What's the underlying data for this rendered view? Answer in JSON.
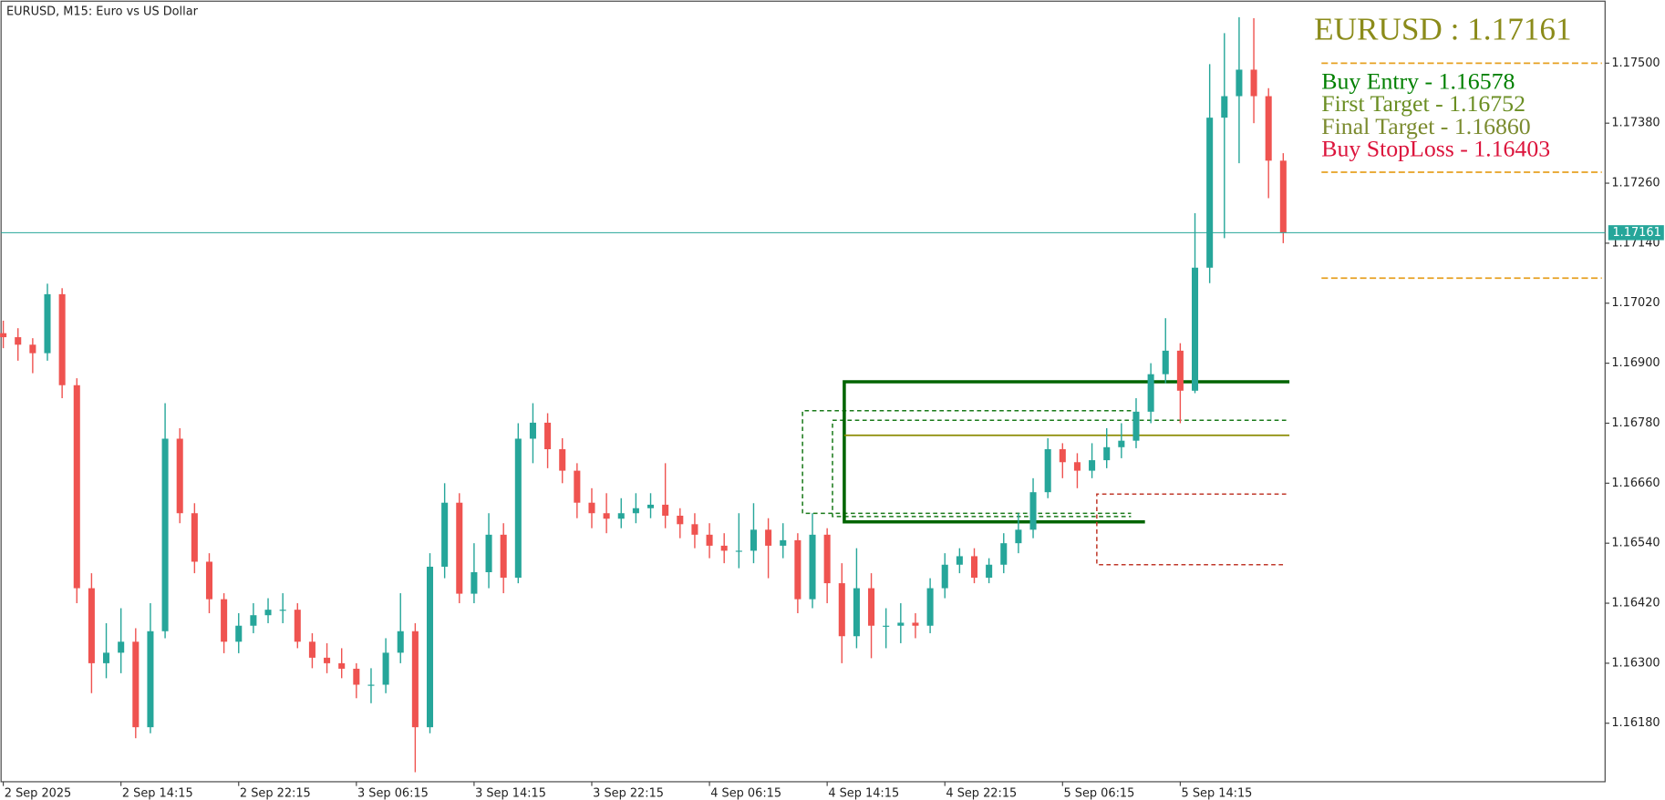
{
  "chart_data": {
    "type": "candlestick",
    "title": "EURUSD, M15:  Euro vs US Dollar",
    "x": [
      0,
      4,
      8,
      12,
      16,
      20,
      24,
      28,
      32,
      36,
      40,
      44,
      48,
      52,
      56,
      60,
      64,
      68,
      72,
      76,
      80,
      84,
      88,
      92,
      96,
      100,
      104,
      108,
      112,
      116,
      120,
      124,
      128,
      132,
      136,
      140,
      144,
      148,
      152,
      156,
      160,
      164,
      168,
      172,
      176,
      180,
      184,
      188,
      192,
      196,
      200,
      204,
      208,
      212,
      216,
      220,
      224,
      228,
      232,
      236,
      240,
      244,
      248,
      252,
      256,
      260,
      264,
      268,
      272,
      276,
      280,
      284,
      288,
      292,
      296,
      300,
      304,
      308,
      312,
      316,
      320,
      324,
      328,
      332,
      336,
      340,
      344,
      348
    ],
    "open": [
      1.1696,
      1.16952,
      1.16937,
      1.1692,
      1.17038,
      1.16856,
      1.1645,
      1.163,
      1.16321,
      1.16343,
      1.16172,
      1.16364,
      1.16749,
      1.166,
      1.16503,
      1.16428,
      1.16343,
      1.16375,
      1.16396,
      1.16407,
      1.16407,
      1.16343,
      1.16311,
      1.163,
      1.16289,
      1.16257,
      1.16257,
      1.16321,
      1.16364,
      1.16172,
      1.16493,
      1.16621,
      1.16439,
      1.16482,
      1.16557,
      1.16471,
      1.16749,
      1.16781,
      1.16728,
      1.16685,
      1.16621,
      1.166,
      1.16589,
      1.166,
      1.1661,
      1.16617,
      1.16595,
      1.16578,
      1.16557,
      1.16535,
      1.16525,
      1.16525,
      1.16567,
      1.16535,
      1.16546,
      1.16428,
      1.16557,
      1.1646,
      1.16354,
      1.1645,
      1.16375,
      1.16375,
      1.16381,
      1.16375,
      1.1645,
      1.16497,
      1.16514,
      1.16471,
      1.16497,
      1.1654,
      1.16567,
      1.16642,
      1.16728,
      1.16702,
      1.16685,
      1.16706,
      1.16732,
      1.16745,
      1.16803,
      1.16878,
      1.16925,
      1.16845,
      1.17091,
      1.17391,
      1.17434,
      1.17487,
      1.17434,
      1.17305
    ],
    "high": [
      1.16985,
      1.1697,
      1.1695,
      1.17059,
      1.1705,
      1.1687,
      1.1648,
      1.1638,
      1.1641,
      1.1637,
      1.1642,
      1.1682,
      1.1677,
      1.1662,
      1.1652,
      1.1644,
      1.164,
      1.1642,
      1.1643,
      1.1644,
      1.1642,
      1.1636,
      1.1634,
      1.1633,
      1.163,
      1.1629,
      1.1635,
      1.1644,
      1.1638,
      1.1652,
      1.1666,
      1.1664,
      1.1654,
      1.166,
      1.1658,
      1.1678,
      1.1682,
      1.168,
      1.1675,
      1.167,
      1.1665,
      1.1664,
      1.1663,
      1.1664,
      1.1664,
      1.167,
      1.1661,
      1.166,
      1.1658,
      1.1656,
      1.166,
      1.1662,
      1.1659,
      1.1658,
      1.1656,
      1.166,
      1.1657,
      1.165,
      1.1653,
      1.1648,
      1.1641,
      1.1642,
      1.164,
      1.1647,
      1.1652,
      1.1653,
      1.1653,
      1.1651,
      1.1656,
      1.166,
      1.1667,
      1.1675,
      1.1674,
      1.1672,
      1.1674,
      1.1677,
      1.1678,
      1.1683,
      1.169,
      1.1699,
      1.1694,
      1.172,
      1.17498,
      1.1756,
      1.17592,
      1.1759,
      1.1745,
      1.1732
    ],
    "low": [
      1.1693,
      1.16905,
      1.1688,
      1.16905,
      1.1683,
      1.1642,
      1.1624,
      1.1627,
      1.1628,
      1.1615,
      1.1616,
      1.1635,
      1.1658,
      1.1648,
      1.164,
      1.1632,
      1.1632,
      1.1636,
      1.1638,
      1.1638,
      1.1633,
      1.1629,
      1.1628,
      1.1627,
      1.1623,
      1.1622,
      1.1624,
      1.163,
      1.16082,
      1.1616,
      1.1647,
      1.1642,
      1.1642,
      1.1645,
      1.1644,
      1.1646,
      1.167,
      1.1669,
      1.1666,
      1.1659,
      1.1657,
      1.1656,
      1.1657,
      1.1658,
      1.1659,
      1.1657,
      1.1655,
      1.1653,
      1.1651,
      1.165,
      1.1649,
      1.165,
      1.1647,
      1.1651,
      1.164,
      1.1641,
      1.1642,
      1.163,
      1.1633,
      1.1631,
      1.1633,
      1.1634,
      1.1635,
      1.1636,
      1.1643,
      1.1648,
      1.1646,
      1.1646,
      1.1648,
      1.1652,
      1.1655,
      1.1663,
      1.1667,
      1.1665,
      1.1667,
      1.1669,
      1.1671,
      1.1673,
      1.1678,
      1.1686,
      1.1678,
      1.1684,
      1.1706,
      1.1715,
      1.173,
      1.1738,
      1.1723,
      1.1714
    ],
    "close": [
      1.16952,
      1.16937,
      1.1692,
      1.17038,
      1.16856,
      1.1645,
      1.163,
      1.16321,
      1.16343,
      1.16172,
      1.16364,
      1.16749,
      1.166,
      1.16503,
      1.16428,
      1.16343,
      1.16375,
      1.16396,
      1.16407,
      1.16407,
      1.16343,
      1.16311,
      1.163,
      1.16289,
      1.16257,
      1.16257,
      1.16321,
      1.16364,
      1.16172,
      1.16493,
      1.16621,
      1.16439,
      1.16482,
      1.16557,
      1.16471,
      1.16749,
      1.16781,
      1.16728,
      1.16685,
      1.16621,
      1.166,
      1.16589,
      1.166,
      1.1661,
      1.16617,
      1.16595,
      1.16578,
      1.16557,
      1.16535,
      1.16525,
      1.16525,
      1.16567,
      1.16535,
      1.16546,
      1.16428,
      1.16557,
      1.1646,
      1.16354,
      1.1645,
      1.16375,
      1.16375,
      1.16381,
      1.16375,
      1.1645,
      1.16497,
      1.16514,
      1.16471,
      1.16497,
      1.1654,
      1.16567,
      1.16642,
      1.16728,
      1.16702,
      1.16685,
      1.16706,
      1.16732,
      1.16745,
      1.16803,
      1.16878,
      1.16925,
      1.16845,
      1.17091,
      1.17391,
      1.17434,
      1.17487,
      1.17434,
      1.17305,
      1.17161
    ],
    "up_color": "#26a69a",
    "down_color": "#ef5350",
    "xlim": [
      -0.6,
      435.5
    ],
    "xticks": [
      {
        "value": 0,
        "label": "2 Sep 2025"
      },
      {
        "value": 32,
        "label": "2 Sep 14:15"
      },
      {
        "value": 64,
        "label": "2 Sep 22:15"
      },
      {
        "value": 96,
        "label": "3 Sep 06:15"
      },
      {
        "value": 128,
        "label": "3 Sep 14:15"
      },
      {
        "value": 160,
        "label": "3 Sep 22:15"
      },
      {
        "value": 192,
        "label": "4 Sep 06:15"
      },
      {
        "value": 224,
        "label": "4 Sep 14:15"
      },
      {
        "value": 256,
        "label": "4 Sep 22:15"
      },
      {
        "value": 288,
        "label": "5 Sep 06:15"
      },
      {
        "value": 320,
        "label": "5 Sep 14:15"
      }
    ],
    "ylim": [
      1.16063,
      1.17624
    ],
    "yticks": [
      {
        "value": 1.175,
        "label": "1.17500"
      },
      {
        "value": 1.1738,
        "label": "1.17380"
      },
      {
        "value": 1.1726,
        "label": "1.17260"
      },
      {
        "value": 1.1714,
        "label": "1.17140"
      },
      {
        "value": 1.1702,
        "label": "1.17020"
      },
      {
        "value": 1.169,
        "label": "1.16900"
      },
      {
        "value": 1.1678,
        "label": "1.16780"
      },
      {
        "value": 1.1666,
        "label": "1.16660"
      },
      {
        "value": 1.1654,
        "label": "1.16540"
      },
      {
        "value": 1.1642,
        "label": "1.16420"
      },
      {
        "value": 1.163,
        "label": "1.16300"
      },
      {
        "value": 1.1618,
        "label": "1.16180"
      }
    ],
    "current_price": 1.17161,
    "current_price_color": "#26a69a",
    "grid": false,
    "annotations": {
      "title": "EURUSD : 1.17161",
      "lines": [
        "Buy Entry - 1.16578",
        "First Target - 1.16752",
        "Final Target - 1.16860",
        "Buy StopLoss - 1.16403"
      ]
    }
  }
}
